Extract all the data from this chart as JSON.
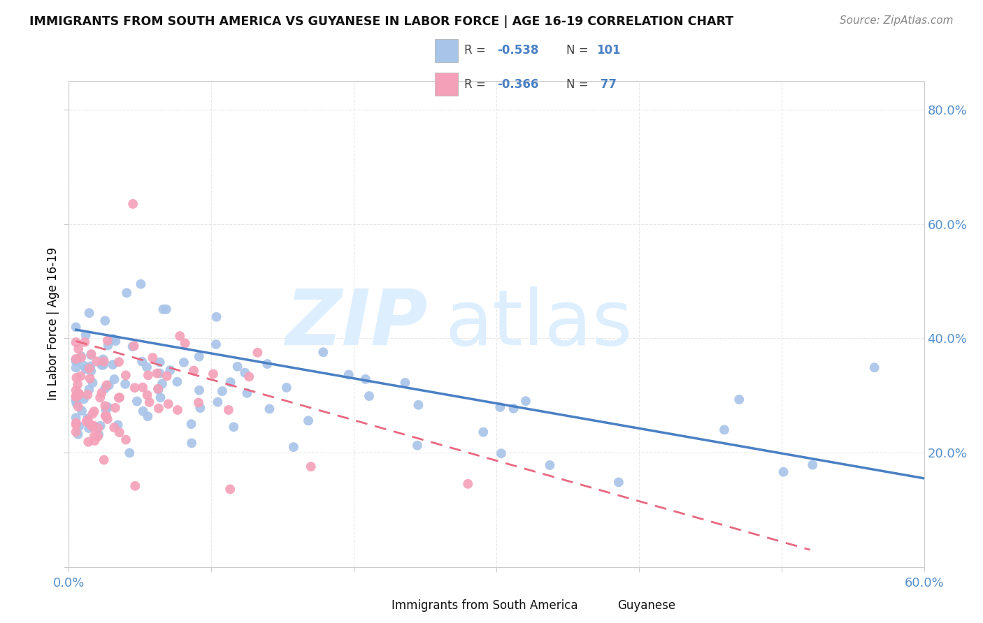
{
  "title": "IMMIGRANTS FROM SOUTH AMERICA VS GUYANESE IN LABOR FORCE | AGE 16-19 CORRELATION CHART",
  "source": "Source: ZipAtlas.com",
  "ylabel": "In Labor Force | Age 16-19",
  "xlim": [
    0.0,
    0.6
  ],
  "ylim": [
    0.0,
    0.85
  ],
  "x_tick_positions": [
    0.0,
    0.1,
    0.2,
    0.3,
    0.4,
    0.5,
    0.6
  ],
  "x_tick_labels": [
    "0.0%",
    "",
    "",
    "",
    "",
    "",
    "60.0%"
  ],
  "y_tick_positions": [
    0.0,
    0.2,
    0.4,
    0.6,
    0.8
  ],
  "y_tick_labels": [
    "",
    "20.0%",
    "40.0%",
    "60.0%",
    "80.0%"
  ],
  "r_sa": -0.538,
  "n_sa": 101,
  "r_gy": -0.366,
  "n_gy": 77,
  "blue_scatter_color": "#a8c4e8",
  "pink_scatter_color": "#f4a0b8",
  "blue_line_color": "#4a80c4",
  "pink_line_color": "#e86880",
  "grid_color": "#e8e8e8",
  "tick_color": "#5590cc",
  "watermark_color": "#ddeeff",
  "sa_line_x0": 0.005,
  "sa_line_x1": 0.6,
  "sa_line_y0": 0.415,
  "sa_line_y1": 0.155,
  "gy_line_x0": 0.005,
  "gy_line_x1": 0.52,
  "gy_line_y0": 0.395,
  "gy_line_y1": 0.03
}
